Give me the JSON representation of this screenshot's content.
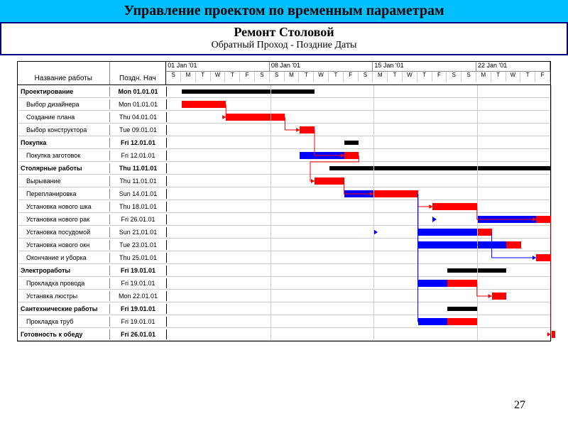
{
  "title": "Управление проектом по временным параметрам",
  "project_title": "Ремонт Столовой",
  "project_subtitle": "Обратный Проход - Поздние Даты",
  "columns": {
    "name": "Название работы",
    "date": "Поздн. Нач"
  },
  "weeks": [
    {
      "label": "01 Jan '01",
      "days": [
        "S",
        "M",
        "T",
        "W",
        "T",
        "F",
        "S"
      ]
    },
    {
      "label": "08 Jan '01",
      "days": [
        "S",
        "M",
        "T",
        "W",
        "T",
        "F",
        "S"
      ]
    },
    {
      "label": "15 Jan '01",
      "days": [
        "M",
        "T",
        "W",
        "T",
        "F",
        "S",
        "S"
      ]
    },
    {
      "label": "22 Jan '01",
      "days": [
        "M",
        "T",
        "W",
        "T",
        "F"
      ]
    }
  ],
  "day_width": 20.8,
  "chart_start_day": 0,
  "rows": [
    {
      "name": "Проектирование",
      "date": "Mon 01.01.01",
      "bold": true,
      "bars": [
        {
          "type": "black",
          "start": 1,
          "dur": 9
        }
      ]
    },
    {
      "name": "Выбор дизайнера",
      "date": "Mon 01.01.01",
      "bars": [
        {
          "type": "red",
          "start": 1,
          "dur": 3
        }
      ]
    },
    {
      "name": "Создание плана",
      "date": "Thu 04.01.01",
      "bars": [
        {
          "type": "red",
          "start": 4,
          "dur": 4
        }
      ]
    },
    {
      "name": "Выбор конструктора",
      "date": "Tue 09.01.01",
      "bars": [
        {
          "type": "red",
          "start": 9,
          "dur": 1
        }
      ]
    },
    {
      "name": "Покупка",
      "date": "Fri 12.01.01",
      "bold": true,
      "bars": [
        {
          "type": "black",
          "start": 12,
          "dur": 1
        }
      ]
    },
    {
      "name": "Покупка заготовок",
      "date": "Fri 12.01.01",
      "bars": [
        {
          "type": "blue",
          "start": 9,
          "dur": 4
        },
        {
          "type": "red",
          "start": 12,
          "dur": 1
        }
      ]
    },
    {
      "name": "Столярные работы",
      "date": "Thu 11.01.01",
      "bold": true,
      "bars": [
        {
          "type": "black",
          "start": 11,
          "dur": 15
        }
      ]
    },
    {
      "name": "Вырывание",
      "date": "Thu 11.01.01",
      "bars": [
        {
          "type": "red",
          "start": 10,
          "dur": 2
        }
      ]
    },
    {
      "name": "Перепланировка",
      "date": "Sun 14.01.01",
      "bars": [
        {
          "type": "blue",
          "start": 12,
          "dur": 2
        },
        {
          "type": "red",
          "start": 14,
          "dur": 3
        }
      ]
    },
    {
      "name": "Установка нового шка",
      "date": "Thu 18.01.01",
      "bars": [
        {
          "type": "red",
          "start": 18,
          "dur": 3
        }
      ]
    },
    {
      "name": "Установка нового рак",
      "date": "Fri 26.01.01",
      "bars": [
        {
          "type": "blue",
          "start": 21,
          "dur": 4
        },
        {
          "type": "red",
          "start": 25,
          "dur": 1
        }
      ],
      "markers": [
        {
          "day": 18
        }
      ]
    },
    {
      "name": "Установка посудомой",
      "date": "Sun 21.01.01",
      "bars": [
        {
          "type": "blue",
          "start": 17,
          "dur": 4
        },
        {
          "type": "red",
          "start": 21,
          "dur": 1
        }
      ],
      "markers": [
        {
          "day": 14
        }
      ]
    },
    {
      "name": "Установка нового окн",
      "date": "Tue 23.01.01",
      "bars": [
        {
          "type": "blue",
          "start": 17,
          "dur": 6
        },
        {
          "type": "red",
          "start": 23,
          "dur": 1
        }
      ]
    },
    {
      "name": "Окончание и уборка",
      "date": "Thu 25.01.01",
      "bars": [
        {
          "type": "red",
          "start": 25,
          "dur": 1
        }
      ]
    },
    {
      "name": "Электроработы",
      "date": "Fri 19.01.01",
      "bold": true,
      "bars": [
        {
          "type": "black",
          "start": 19,
          "dur": 4
        }
      ]
    },
    {
      "name": "Прокладка провода",
      "date": "Fri 19.01.01",
      "bars": [
        {
          "type": "blue",
          "start": 17,
          "dur": 2
        },
        {
          "type": "red",
          "start": 19,
          "dur": 2
        }
      ]
    },
    {
      "name": "Устанвка люстры",
      "date": "Mon 22.01.01",
      "bars": [
        {
          "type": "red",
          "start": 22,
          "dur": 1
        }
      ]
    },
    {
      "name": "Сантехнические работы",
      "date": "Fri 19.01.01",
      "bold": true,
      "bars": [
        {
          "type": "black",
          "start": 19,
          "dur": 2
        }
      ]
    },
    {
      "name": "Прокладка труб",
      "date": "Fri 19.01.01",
      "bars": [
        {
          "type": "blue",
          "start": 17,
          "dur": 2
        },
        {
          "type": "red",
          "start": 19,
          "dur": 2
        }
      ]
    },
    {
      "name": "Готовность к обеду",
      "date": "Fri 26.01.01",
      "bold": true,
      "bars": [
        {
          "type": "red",
          "start": 26,
          "dur": 0.3
        }
      ]
    }
  ],
  "links": [
    {
      "from_row": 1,
      "from_day": 4,
      "to_row": 2,
      "to_day": 4,
      "color": "red"
    },
    {
      "from_row": 2,
      "from_day": 8,
      "to_row": 3,
      "to_day": 9,
      "color": "red"
    },
    {
      "from_row": 3,
      "from_day": 10,
      "to_row": 5,
      "to_day": 12,
      "color": "red"
    },
    {
      "from_row": 5,
      "from_day": 13,
      "to_row": 7,
      "to_day": 10,
      "color": "red",
      "back": true
    },
    {
      "from_row": 7,
      "from_day": 12,
      "to_row": 8,
      "to_day": 14,
      "color": "red"
    },
    {
      "from_row": 8,
      "from_day": 17,
      "to_row": 9,
      "to_day": 18,
      "color": "red"
    },
    {
      "from_row": 9,
      "from_day": 21,
      "to_row": 10,
      "to_day": 25,
      "color": "red"
    },
    {
      "from_row": 8,
      "from_day": 17,
      "to_row": 11,
      "to_day": 21,
      "color": "blue"
    },
    {
      "from_row": 8,
      "from_day": 17,
      "to_row": 12,
      "to_day": 23,
      "color": "blue"
    },
    {
      "from_row": 8,
      "from_day": 17,
      "to_row": 15,
      "to_day": 19,
      "color": "blue"
    },
    {
      "from_row": 8,
      "from_day": 17,
      "to_row": 18,
      "to_day": 19,
      "color": "blue"
    },
    {
      "from_row": 15,
      "from_day": 21,
      "to_row": 16,
      "to_day": 22,
      "color": "red"
    },
    {
      "from_row": 10,
      "from_day": 26,
      "to_row": 19,
      "to_day": 26,
      "color": "red"
    },
    {
      "from_row": 11,
      "from_day": 22,
      "to_row": 13,
      "to_day": 25,
      "color": "blue"
    }
  ],
  "page_number": "27",
  "colors": {
    "red": "#ff0000",
    "blue": "#0000ff",
    "black": "#000000",
    "title_bg": "#00bfff",
    "border": "#000080"
  }
}
